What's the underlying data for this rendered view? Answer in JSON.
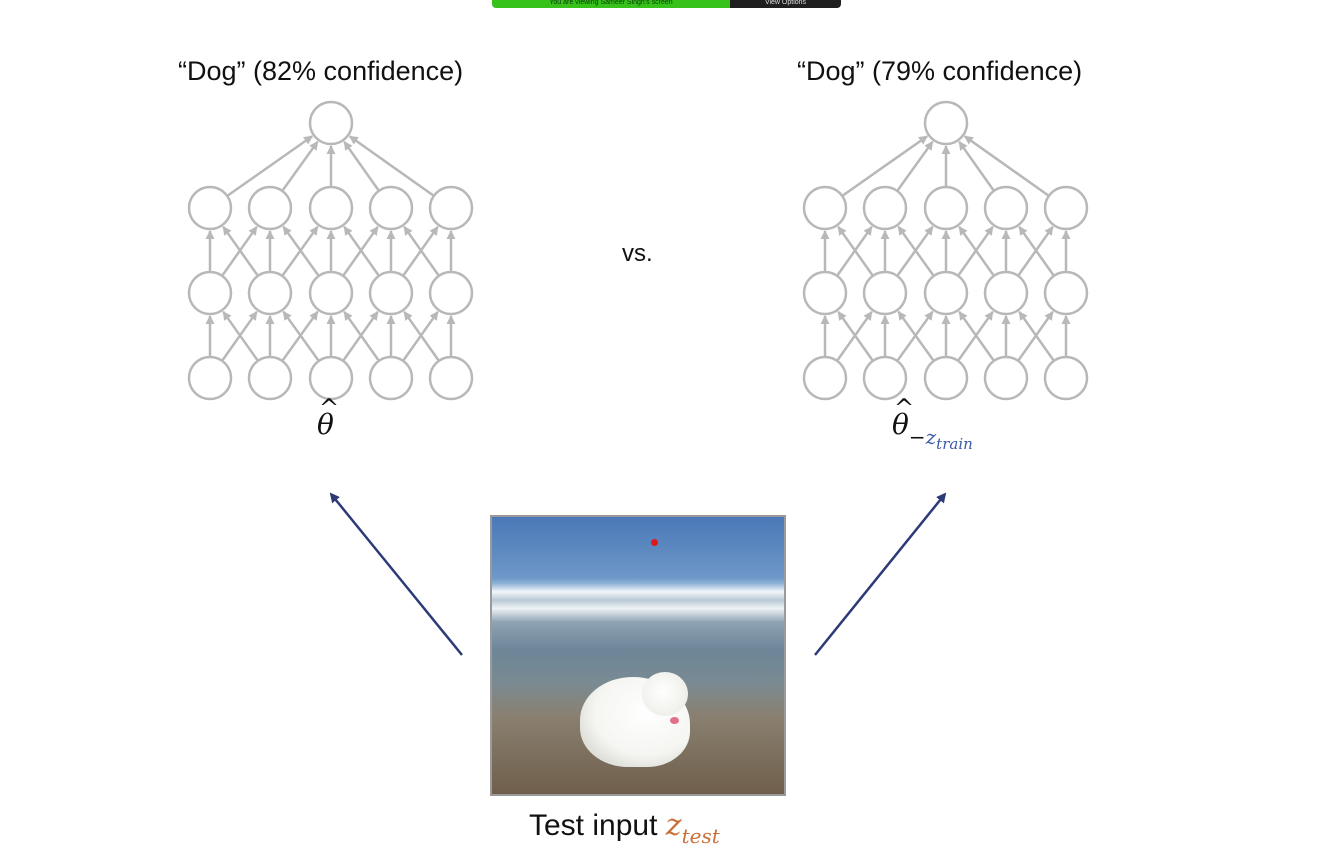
{
  "banner": {
    "viewing_text": "You are viewing Sameer Singh's screen",
    "options_label": "View Options"
  },
  "left": {
    "title": "“Dog” (82% confidence)",
    "parameter": "θ"
  },
  "right": {
    "title": "“Dog” (79% confidence)",
    "parameter": "θ",
    "parameter_subscript_prefix": "−",
    "parameter_subscript": "z",
    "parameter_subscript_sub": "train"
  },
  "comparison": "vs.",
  "test_input": {
    "label": "Test input",
    "variable": "z",
    "variable_subscript": "test"
  },
  "colors": {
    "network": "#b8b8b8",
    "arrow": "#2c3a78",
    "subscript_blue": "#3a5ba8",
    "subscript_orange": "#c9703a",
    "marker": "#e0161c"
  }
}
